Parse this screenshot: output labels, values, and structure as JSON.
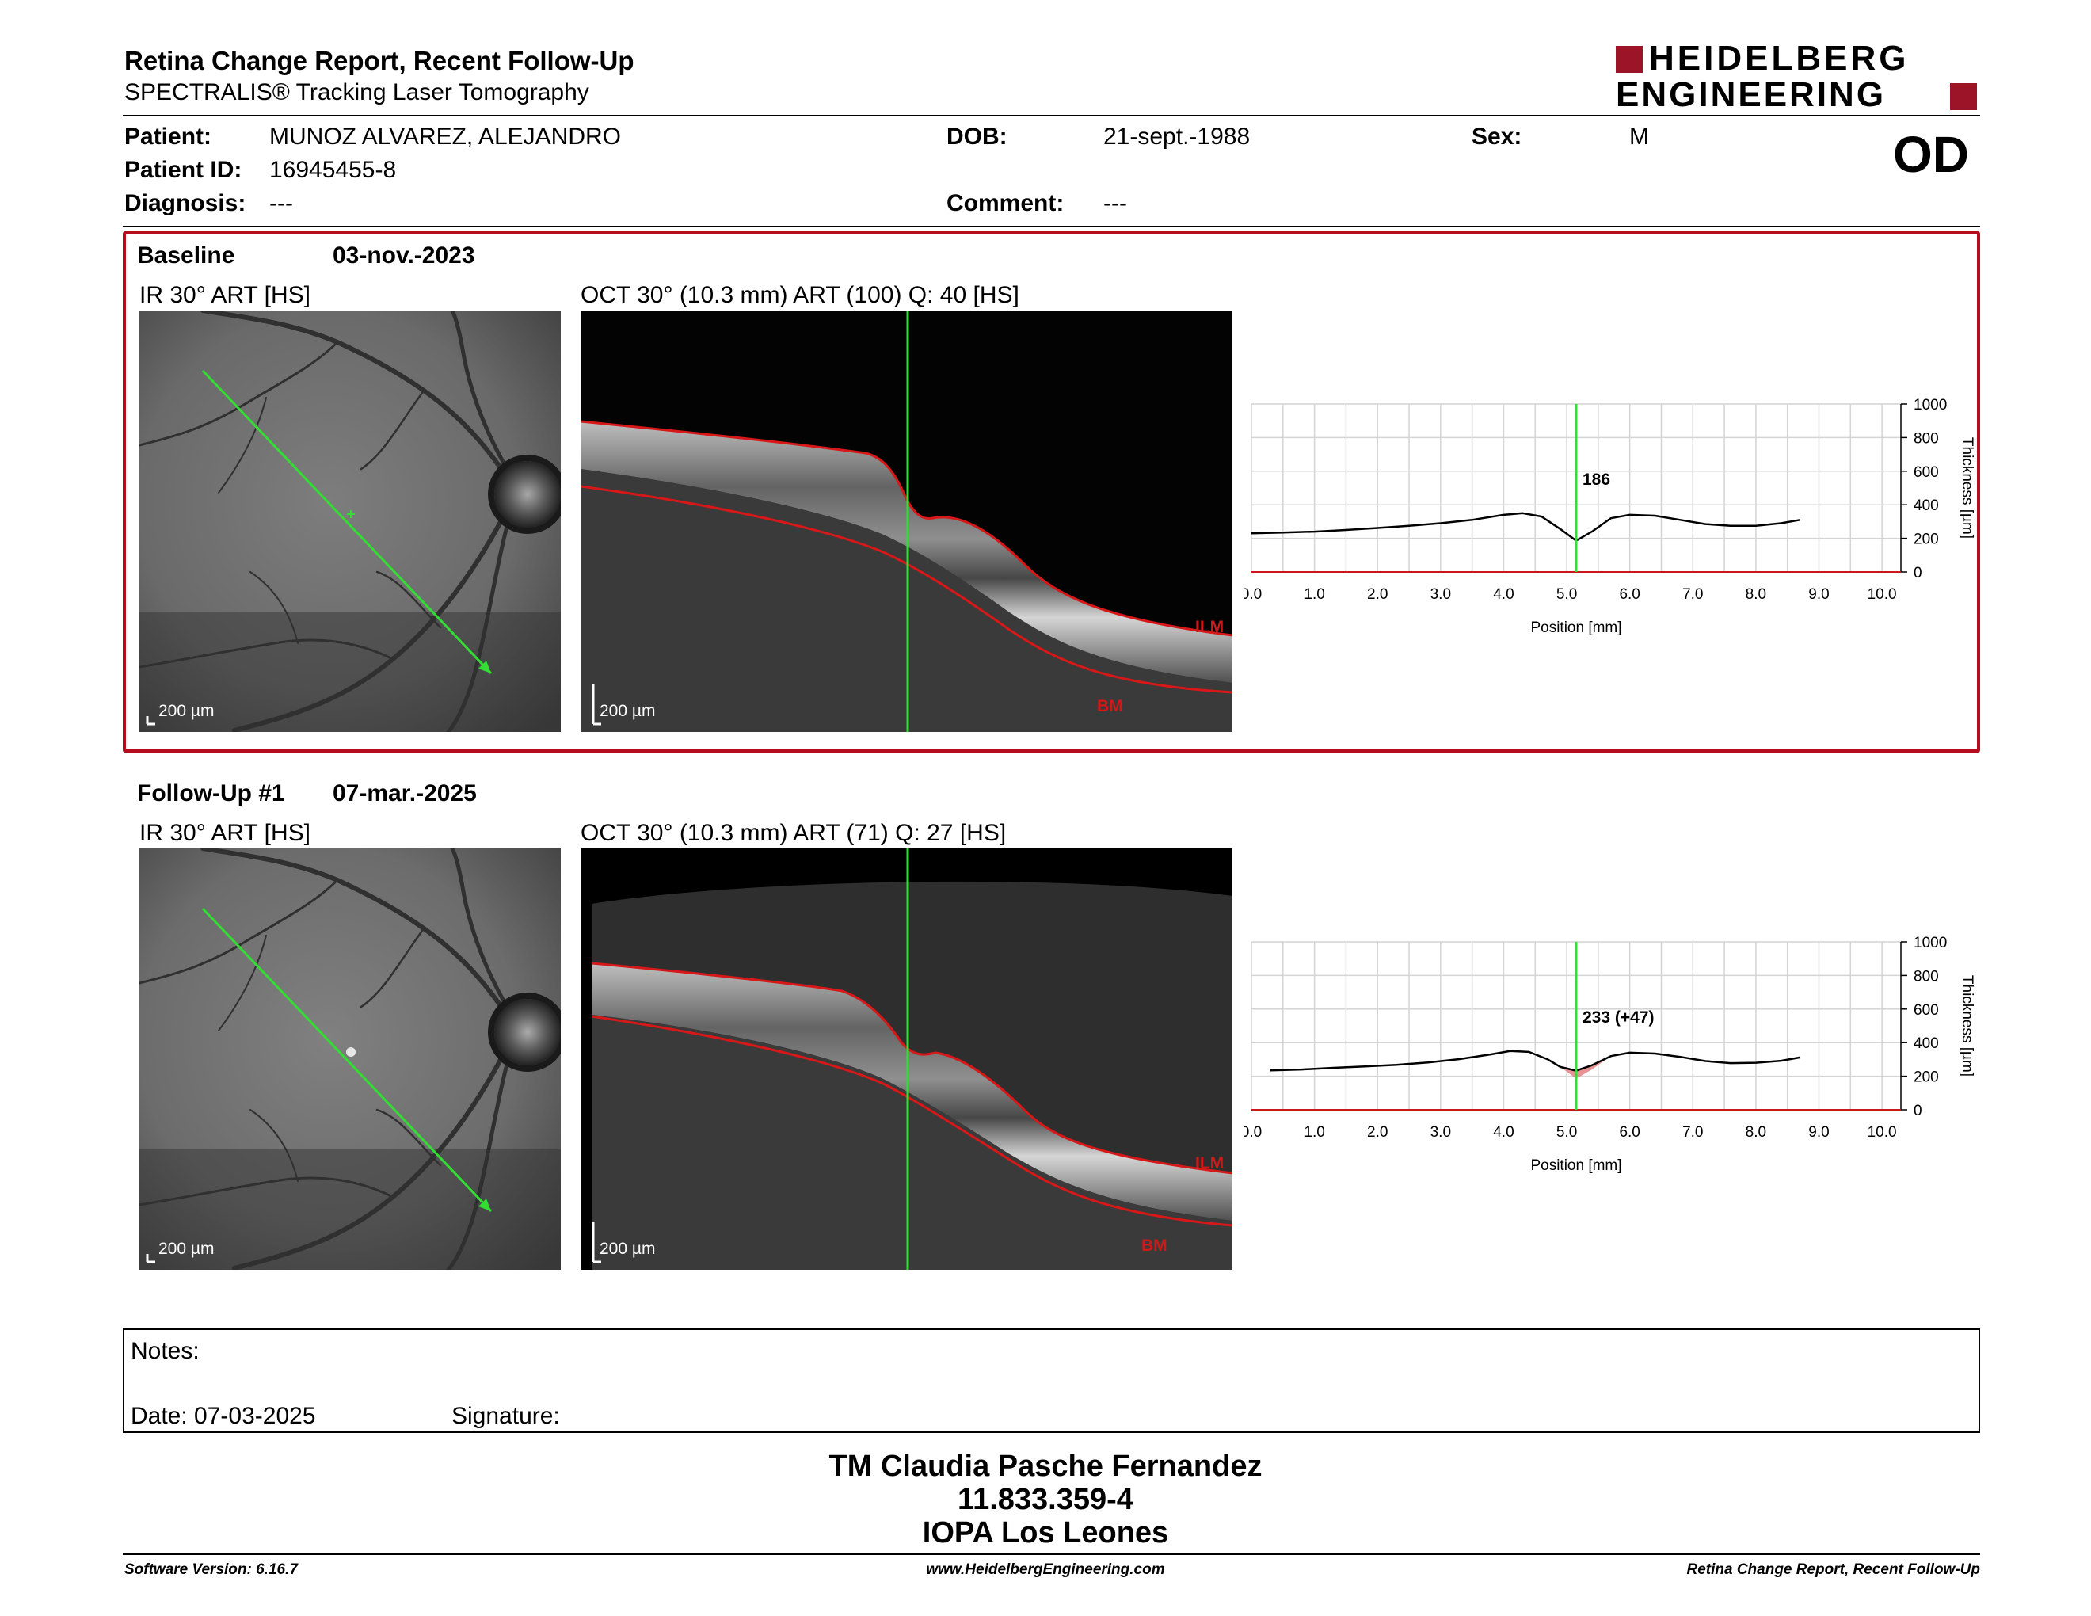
{
  "report": {
    "title": "Retina Change Report, Recent Follow-Up",
    "subtitle": "SPECTRALIS® Tracking Laser Tomography",
    "logo_line1": "HEIDELBERG",
    "logo_line2": "ENGINEERING",
    "eye": "OD"
  },
  "patient": {
    "name_label": "Patient:",
    "name": "MUNOZ ALVAREZ, ALEJANDRO",
    "id_label": "Patient ID:",
    "id": "16945455-8",
    "diagnosis_label": "Diagnosis:",
    "diagnosis": "---",
    "dob_label": "DOB:",
    "dob": "21-sept.-1988",
    "comment_label": "Comment:",
    "comment": "---",
    "sex_label": "Sex:",
    "sex": "M"
  },
  "baseline": {
    "label": "Baseline",
    "date": "03-nov.-2023",
    "ir_title": "IR 30° ART [HS]",
    "oct_title": "OCT 30° (10.3 mm) ART (100) Q: 40 [HS]",
    "ir_scale": "200 µm",
    "oct_scale": "200 µm",
    "ilm_label": "ILM",
    "bm_label": "BM"
  },
  "followup": {
    "label": "Follow-Up #1",
    "date": "07-mar.-2025",
    "ir_title": "IR 30° ART [HS]",
    "oct_title": "OCT 30° (10.3 mm) ART (71) Q: 27 [HS]",
    "ir_scale": "200 µm",
    "oct_scale": "200 µm",
    "ilm_label": "ILM",
    "bm_label": "BM"
  },
  "chart_data": [
    {
      "type": "line",
      "xlabel": "Position [mm]",
      "ylabel": "Thickness [µm]",
      "xlim": [
        0,
        10.3
      ],
      "ylim": [
        0,
        1000
      ],
      "xticks": [
        "0.0",
        "1.0",
        "2.0",
        "3.0",
        "4.0",
        "5.0",
        "6.0",
        "7.0",
        "8.0",
        "9.0",
        "10.0"
      ],
      "yticks": [
        "0",
        "200",
        "400",
        "600",
        "800",
        "1000"
      ],
      "cursor_x": 5.15,
      "cursor_label": "186",
      "cursor_color": "#33dd33",
      "line_color": "#000000",
      "grid": true,
      "x": [
        0.0,
        0.5,
        1.0,
        1.5,
        2.0,
        2.5,
        3.0,
        3.5,
        4.0,
        4.3,
        4.6,
        4.9,
        5.15,
        5.4,
        5.7,
        6.0,
        6.4,
        6.8,
        7.2,
        7.6,
        8.0,
        8.4,
        8.7
      ],
      "y": [
        230,
        235,
        240,
        250,
        262,
        275,
        290,
        310,
        340,
        350,
        330,
        255,
        186,
        240,
        320,
        340,
        335,
        310,
        285,
        275,
        275,
        290,
        310
      ]
    },
    {
      "type": "line",
      "xlabel": "Position [mm]",
      "ylabel": "Thickness [µm]",
      "xlim": [
        0,
        10.3
      ],
      "ylim": [
        0,
        1000
      ],
      "xticks": [
        "0.0",
        "1.0",
        "2.0",
        "3.0",
        "4.0",
        "5.0",
        "6.0",
        "7.0",
        "8.0",
        "9.0",
        "10.0"
      ],
      "yticks": [
        "0",
        "200",
        "400",
        "600",
        "800",
        "1000"
      ],
      "cursor_x": 5.15,
      "cursor_label": "233 (+47)",
      "cursor_color": "#33dd33",
      "line_color": "#000000",
      "diff_fill": "#e38080",
      "grid": true,
      "x": [
        0.3,
        0.8,
        1.3,
        1.8,
        2.3,
        2.8,
        3.3,
        3.8,
        4.1,
        4.4,
        4.7,
        4.9,
        5.15,
        5.4,
        5.7,
        6.0,
        6.4,
        6.8,
        7.2,
        7.6,
        8.0,
        8.4,
        8.7
      ],
      "y": [
        235,
        240,
        250,
        258,
        268,
        282,
        302,
        330,
        350,
        345,
        300,
        255,
        233,
        265,
        320,
        340,
        335,
        315,
        290,
        278,
        280,
        292,
        312
      ]
    }
  ],
  "notes": {
    "label": "Notes:",
    "date_label": "Date: 07-03-2025",
    "signature_label": "Signature:"
  },
  "footer": {
    "name": "TM Claudia Pasche Fernandez",
    "rut": "11.833.359-4",
    "org": "IOPA Los Leones",
    "software": "Software Version: 6.16.7",
    "website": "www.HeidelbergEngineering.com",
    "report_name": "Retina Change Report, Recent Follow-Up"
  }
}
